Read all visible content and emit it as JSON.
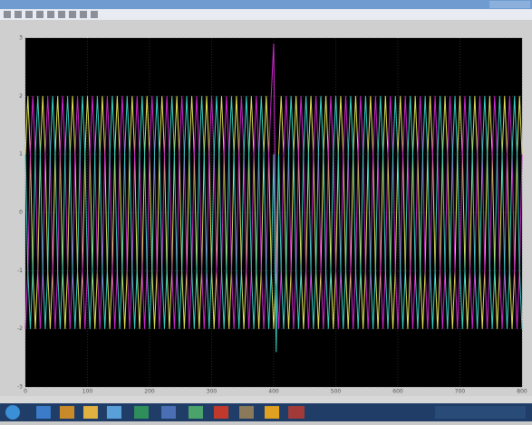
{
  "chart_data": {
    "type": "line",
    "x": [
      0,
      4,
      8,
      12,
      16,
      20,
      24,
      28,
      32,
      36,
      40,
      44,
      48,
      52,
      56,
      60,
      64,
      68,
      72,
      76,
      80,
      84,
      88,
      92,
      96,
      100,
      104,
      108,
      112,
      116,
      120,
      124,
      128,
      132,
      136,
      140,
      144,
      148,
      152,
      156,
      160,
      164,
      168,
      172,
      176,
      180,
      184,
      188,
      192,
      196,
      200,
      204,
      208,
      212,
      216,
      220,
      224,
      228,
      232,
      236,
      240,
      244,
      248,
      252,
      256,
      260,
      264,
      268,
      272,
      276,
      280,
      284,
      288,
      292,
      296,
      300,
      304,
      308,
      312,
      316,
      320,
      324,
      328,
      332,
      336,
      340,
      344,
      348,
      352,
      356,
      360,
      364,
      368,
      372,
      376,
      380,
      384,
      388,
      392,
      396,
      400,
      404,
      408,
      412,
      416,
      420,
      424,
      428,
      432,
      436,
      440,
      444,
      448,
      452,
      456,
      460,
      464,
      468,
      472,
      476,
      480,
      484,
      488,
      492,
      496,
      500,
      504,
      508,
      512,
      516,
      520,
      524,
      528,
      532,
      536,
      540,
      544,
      548,
      552,
      556,
      560,
      564,
      568,
      572,
      576,
      580,
      584,
      588,
      592,
      596,
      600,
      604,
      608,
      612,
      616,
      620,
      624,
      628,
      632,
      636,
      640,
      644,
      648,
      652,
      656,
      660,
      664,
      668,
      672,
      676,
      680,
      684,
      688,
      692,
      696,
      700,
      704,
      708,
      712,
      716,
      720,
      724,
      728,
      732,
      736,
      740,
      744,
      748,
      752,
      756,
      760,
      764,
      768,
      772,
      776,
      780,
      784,
      788,
      792,
      796,
      800
    ],
    "series": [
      {
        "color": "#e6e65a",
        "values": [
          1,
          2,
          1,
          -1,
          -2,
          -1,
          1,
          2,
          1,
          -1,
          -2,
          -1,
          1,
          2,
          1,
          -1,
          -2,
          -1,
          1,
          2,
          1,
          -1,
          -2,
          -1,
          1,
          2,
          1,
          -1,
          -2,
          -1,
          1,
          2,
          1,
          -1,
          -2,
          -1,
          1,
          2,
          1,
          -1,
          -2,
          -1,
          1,
          2,
          1,
          -1,
          -2,
          -1,
          1,
          2,
          1,
          -1,
          -2,
          -1,
          1,
          2,
          1,
          -1,
          -2,
          -1,
          1,
          2,
          1,
          -1,
          -2,
          -1,
          1,
          2,
          1,
          -1,
          -2,
          -1,
          1,
          2,
          1,
          -1,
          -2,
          -1,
          1,
          2,
          1,
          -1,
          -2,
          -1,
          1,
          2,
          1,
          -1,
          -2,
          -1,
          1,
          2,
          1,
          -1,
          -2,
          -1,
          1,
          2,
          1,
          -1,
          -2,
          -1,
          1,
          2,
          1,
          -1,
          -2,
          -1,
          1,
          2,
          1,
          -1,
          -2,
          -1,
          1,
          2,
          1,
          -1,
          -2,
          -1,
          1,
          2,
          1,
          -1,
          -2,
          -1,
          1,
          2,
          1,
          -1,
          -2,
          -1,
          1,
          2,
          1,
          -1,
          -2,
          -1,
          1,
          2,
          1,
          -1,
          -2,
          -1,
          1,
          2,
          1,
          -1,
          -2,
          -1,
          1,
          2,
          1,
          -1,
          -2,
          -1,
          1,
          2,
          1,
          -1,
          -2,
          -1,
          1,
          2,
          1,
          -1,
          -2,
          -1,
          1,
          2,
          1,
          -1,
          -2,
          -1,
          1,
          2,
          1,
          -1,
          -2,
          -1,
          1,
          2,
          1,
          -1,
          -2,
          -1,
          1,
          2,
          1,
          -1,
          -2,
          -1,
          1,
          2,
          1,
          -1,
          -2,
          -1,
          1,
          2,
          1
        ]
      },
      {
        "color": "#d22ad2",
        "values": [
          -2,
          -1,
          1,
          2,
          1,
          -1,
          -2,
          -1,
          1,
          2,
          1,
          -1,
          -2,
          -1,
          1,
          2,
          1,
          -1,
          -2,
          -1,
          1,
          2,
          1,
          -1,
          -2,
          -1,
          1,
          2,
          1,
          -1,
          -2,
          -1,
          1,
          2,
          1,
          -1,
          -2,
          -1,
          1,
          2,
          1,
          -1,
          -2,
          -1,
          1,
          2,
          1,
          -1,
          -2,
          -1,
          1,
          2,
          1,
          -1,
          -2,
          -1,
          1,
          2,
          1,
          -1,
          -2,
          -1,
          1,
          2,
          1,
          -1,
          -2,
          -1,
          1,
          2,
          1,
          -1,
          -2,
          -1,
          1,
          2,
          1,
          -1,
          -2,
          -1,
          1,
          2,
          1,
          -1,
          -2,
          -1,
          1,
          2,
          1,
          -1,
          -2,
          -1,
          1,
          2,
          1,
          -1,
          -2,
          -1,
          1,
          2,
          2.9,
          -1,
          -2,
          -1,
          1,
          2,
          1,
          -1,
          -2,
          -1,
          1,
          2,
          1,
          -1,
          -2,
          -1,
          1,
          2,
          1,
          -1,
          -2,
          -1,
          1,
          2,
          1,
          -1,
          -2,
          -1,
          1,
          2,
          1,
          -1,
          -2,
          -1,
          1,
          2,
          1,
          -1,
          -2,
          -1,
          1,
          2,
          1,
          -1,
          -2,
          -1,
          1,
          2,
          1,
          -1,
          -2,
          -1,
          1,
          2,
          1,
          -1,
          -2,
          -1,
          1,
          2,
          1,
          -1,
          -2,
          -1,
          1,
          2,
          1,
          -1,
          -2,
          -1,
          1,
          2,
          1,
          -1,
          -2,
          -1,
          1,
          2,
          1,
          -1,
          -2,
          -1,
          1,
          2,
          1,
          -1,
          -2,
          -1,
          1,
          2,
          1,
          -1,
          -2,
          -1,
          1,
          2,
          1,
          -1,
          -2,
          -1,
          1
        ]
      },
      {
        "color": "#3ad6c8",
        "values": [
          1,
          -1,
          -2,
          -1,
          1,
          2,
          1,
          -1,
          -2,
          -1,
          1,
          2,
          1,
          -1,
          -2,
          -1,
          1,
          2,
          1,
          -1,
          -2,
          -1,
          1,
          2,
          1,
          -1,
          -2,
          -1,
          1,
          2,
          1,
          -1,
          -2,
          -1,
          1,
          2,
          1,
          -1,
          -2,
          -1,
          1,
          2,
          1,
          -1,
          -2,
          -1,
          1,
          2,
          1,
          -1,
          -2,
          -1,
          1,
          2,
          1,
          -1,
          -2,
          -1,
          1,
          2,
          1,
          -1,
          -2,
          -1,
          1,
          2,
          1,
          -1,
          -2,
          -1,
          1,
          2,
          1,
          -1,
          -2,
          -1,
          1,
          2,
          1,
          -1,
          -2,
          -1,
          1,
          2,
          1,
          -1,
          -2,
          -1,
          1,
          2,
          1,
          -1,
          -2,
          -1,
          1,
          2,
          1,
          -1,
          -2,
          -1,
          1,
          -2.4,
          1,
          -1,
          -2,
          -1,
          1,
          2,
          1,
          -1,
          -2,
          -1,
          1,
          2,
          1,
          -1,
          -2,
          -1,
          1,
          2,
          1,
          -1,
          -2,
          -1,
          1,
          2,
          1,
          -1,
          -2,
          -1,
          1,
          2,
          1,
          -1,
          -2,
          -1,
          1,
          2,
          1,
          -1,
          -2,
          -1,
          1,
          2,
          1,
          -1,
          -2,
          -1,
          1,
          2,
          1,
          -1,
          -2,
          -1,
          1,
          2,
          1,
          -1,
          -2,
          -1,
          1,
          2,
          1,
          -1,
          -2,
          -1,
          1,
          2,
          1,
          -1,
          -2,
          -1,
          1,
          2,
          1,
          -1,
          -2,
          -1,
          1,
          2,
          1,
          -1,
          -2,
          -1,
          1,
          2,
          1,
          -1,
          -2,
          -1,
          1,
          2,
          1,
          -1,
          -2,
          -1,
          1,
          2,
          1,
          -1,
          -2
        ]
      }
    ],
    "xlim": [
      0,
      800
    ],
    "xticks": [
      0,
      100,
      200,
      300,
      400,
      500,
      600,
      700,
      800
    ],
    "ylim": [
      -3,
      3
    ],
    "yticks": [
      -3,
      -2,
      -1,
      0,
      1,
      2,
      3
    ],
    "grid": true
  }
}
